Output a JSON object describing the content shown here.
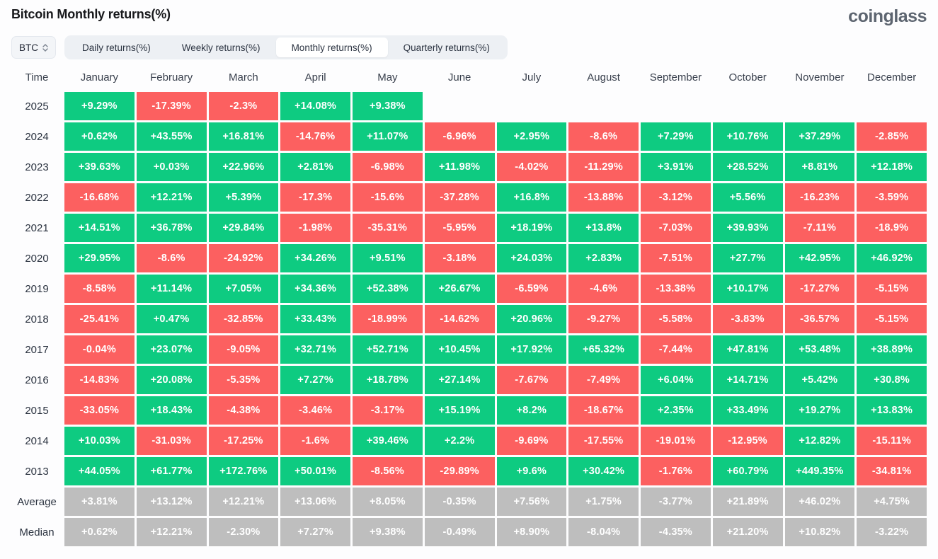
{
  "page": {
    "title": "Bitcoin Monthly returns(%)",
    "brand": "coinglass"
  },
  "controls": {
    "symbol_select": {
      "value": "BTC",
      "icon": "updown-chevron-icon"
    },
    "tabs": [
      {
        "label": "Daily returns(%)",
        "active": false
      },
      {
        "label": "Weekly returns(%)",
        "active": false
      },
      {
        "label": "Monthly returns(%)",
        "active": true
      },
      {
        "label": "Quarterly returns(%)",
        "active": false
      }
    ]
  },
  "theme": {
    "positive_color": "#0ecb81",
    "negative_color": "#fc6060",
    "stat_color": "#bebebe"
  },
  "chart_data": {
    "type": "heatmap",
    "title": "Bitcoin Monthly returns(%)",
    "columns": [
      "Time",
      "January",
      "February",
      "March",
      "April",
      "May",
      "June",
      "July",
      "August",
      "September",
      "October",
      "November",
      "December"
    ],
    "rows": [
      {
        "label": "2025",
        "kind": "year",
        "values": [
          "+9.29%",
          "-17.39%",
          "-2.3%",
          "+14.08%",
          "+9.38%",
          "",
          "",
          "",
          "",
          "",
          "",
          ""
        ]
      },
      {
        "label": "2024",
        "kind": "year",
        "values": [
          "+0.62%",
          "+43.55%",
          "+16.81%",
          "-14.76%",
          "+11.07%",
          "-6.96%",
          "+2.95%",
          "-8.6%",
          "+7.29%",
          "+10.76%",
          "+37.29%",
          "-2.85%"
        ]
      },
      {
        "label": "2023",
        "kind": "year",
        "values": [
          "+39.63%",
          "+0.03%",
          "+22.96%",
          "+2.81%",
          "-6.98%",
          "+11.98%",
          "-4.02%",
          "-11.29%",
          "+3.91%",
          "+28.52%",
          "+8.81%",
          "+12.18%"
        ]
      },
      {
        "label": "2022",
        "kind": "year",
        "values": [
          "-16.68%",
          "+12.21%",
          "+5.39%",
          "-17.3%",
          "-15.6%",
          "-37.28%",
          "+16.8%",
          "-13.88%",
          "-3.12%",
          "+5.56%",
          "-16.23%",
          "-3.59%"
        ]
      },
      {
        "label": "2021",
        "kind": "year",
        "values": [
          "+14.51%",
          "+36.78%",
          "+29.84%",
          "-1.98%",
          "-35.31%",
          "-5.95%",
          "+18.19%",
          "+13.8%",
          "-7.03%",
          "+39.93%",
          "-7.11%",
          "-18.9%"
        ]
      },
      {
        "label": "2020",
        "kind": "year",
        "values": [
          "+29.95%",
          "-8.6%",
          "-24.92%",
          "+34.26%",
          "+9.51%",
          "-3.18%",
          "+24.03%",
          "+2.83%",
          "-7.51%",
          "+27.7%",
          "+42.95%",
          "+46.92%"
        ]
      },
      {
        "label": "2019",
        "kind": "year",
        "values": [
          "-8.58%",
          "+11.14%",
          "+7.05%",
          "+34.36%",
          "+52.38%",
          "+26.67%",
          "-6.59%",
          "-4.6%",
          "-13.38%",
          "+10.17%",
          "-17.27%",
          "-5.15%"
        ]
      },
      {
        "label": "2018",
        "kind": "year",
        "values": [
          "-25.41%",
          "+0.47%",
          "-32.85%",
          "+33.43%",
          "-18.99%",
          "-14.62%",
          "+20.96%",
          "-9.27%",
          "-5.58%",
          "-3.83%",
          "-36.57%",
          "-5.15%"
        ]
      },
      {
        "label": "2017",
        "kind": "year",
        "values": [
          "-0.04%",
          "+23.07%",
          "-9.05%",
          "+32.71%",
          "+52.71%",
          "+10.45%",
          "+17.92%",
          "+65.32%",
          "-7.44%",
          "+47.81%",
          "+53.48%",
          "+38.89%"
        ]
      },
      {
        "label": "2016",
        "kind": "year",
        "values": [
          "-14.83%",
          "+20.08%",
          "-5.35%",
          "+7.27%",
          "+18.78%",
          "+27.14%",
          "-7.67%",
          "-7.49%",
          "+6.04%",
          "+14.71%",
          "+5.42%",
          "+30.8%"
        ]
      },
      {
        "label": "2015",
        "kind": "year",
        "values": [
          "-33.05%",
          "+18.43%",
          "-4.38%",
          "-3.46%",
          "-3.17%",
          "+15.19%",
          "+8.2%",
          "-18.67%",
          "+2.35%",
          "+33.49%",
          "+19.27%",
          "+13.83%"
        ]
      },
      {
        "label": "2014",
        "kind": "year",
        "values": [
          "+10.03%",
          "-31.03%",
          "-17.25%",
          "-1.6%",
          "+39.46%",
          "+2.2%",
          "-9.69%",
          "-17.55%",
          "-19.01%",
          "-12.95%",
          "+12.82%",
          "-15.11%"
        ]
      },
      {
        "label": "2013",
        "kind": "year",
        "values": [
          "+44.05%",
          "+61.77%",
          "+172.76%",
          "+50.01%",
          "-8.56%",
          "-29.89%",
          "+9.6%",
          "+30.42%",
          "-1.76%",
          "+60.79%",
          "+449.35%",
          "-34.81%"
        ]
      },
      {
        "label": "Average",
        "kind": "stat",
        "values": [
          "+3.81%",
          "+13.12%",
          "+12.21%",
          "+13.06%",
          "+8.05%",
          "-0.35%",
          "+7.56%",
          "+1.75%",
          "-3.77%",
          "+21.89%",
          "+46.02%",
          "+4.75%"
        ]
      },
      {
        "label": "Median",
        "kind": "stat",
        "values": [
          "+0.62%",
          "+12.21%",
          "-2.30%",
          "+7.27%",
          "+9.38%",
          "-0.49%",
          "+8.90%",
          "-8.04%",
          "-4.35%",
          "+21.20%",
          "+10.82%",
          "-3.22%"
        ]
      }
    ]
  }
}
